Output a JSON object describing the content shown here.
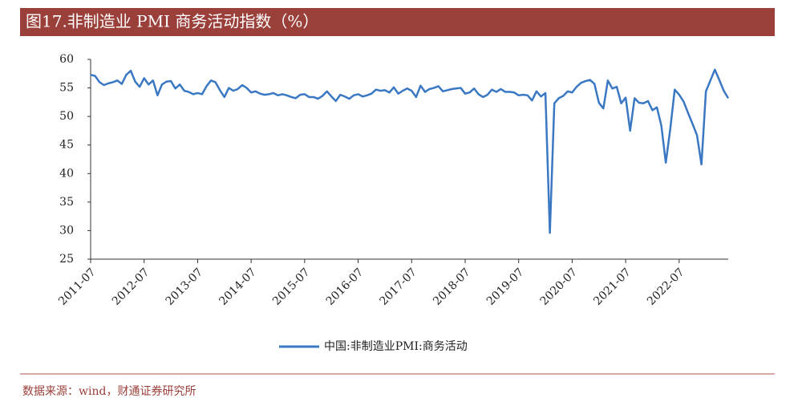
{
  "chart_data": {
    "type": "line",
    "title": "图17.非制造业 PMI 商务活动指数（%）",
    "source": "数据来源：wind，财通证券研究所",
    "categories": [
      "2011-07",
      null,
      null,
      null,
      null,
      null,
      null,
      null,
      null,
      null,
      null,
      null,
      "2012-07",
      null,
      null,
      null,
      null,
      null,
      null,
      null,
      null,
      null,
      null,
      null,
      "2013-07",
      null,
      null,
      null,
      null,
      null,
      null,
      null,
      null,
      null,
      null,
      null,
      "2014-07",
      null,
      null,
      null,
      null,
      null,
      null,
      null,
      null,
      null,
      null,
      null,
      "2015-07",
      null,
      null,
      null,
      null,
      null,
      null,
      null,
      null,
      null,
      null,
      null,
      "2016-07",
      null,
      null,
      null,
      null,
      null,
      null,
      null,
      null,
      null,
      null,
      null,
      "2017-07",
      null,
      null,
      null,
      null,
      null,
      null,
      null,
      null,
      null,
      null,
      null,
      "2018-07",
      null,
      null,
      null,
      null,
      null,
      null,
      null,
      null,
      null,
      null,
      null,
      "2019-07",
      null,
      null,
      null,
      null,
      null,
      null,
      null,
      null,
      null,
      null,
      null,
      "2020-07",
      null,
      null,
      null,
      null,
      null,
      null,
      null,
      null,
      null,
      null,
      null,
      "2021-07",
      null,
      null,
      null,
      null,
      null,
      null,
      null,
      null,
      null,
      null,
      null,
      "2022-07",
      null,
      null,
      null,
      null,
      null,
      null,
      null,
      null,
      null,
      null,
      null
    ],
    "series": [
      {
        "name": "中国:非制造业PMI:商务活动",
        "color": "#3a78c4",
        "values": [
          57.3,
          57.1,
          56.0,
          55.5,
          55.8,
          56.0,
          56.3,
          55.7,
          57.3,
          58.0,
          56.1,
          55.2,
          56.7,
          55.6,
          56.3,
          53.7,
          55.6,
          56.1,
          56.2,
          54.9,
          55.6,
          54.5,
          54.3,
          53.9,
          54.1,
          53.9,
          55.3,
          56.3,
          56.0,
          54.6,
          53.4,
          55.0,
          54.5,
          54.8,
          55.5,
          55.0,
          54.2,
          54.4,
          54.0,
          53.8,
          53.9,
          54.1,
          53.7,
          53.9,
          53.7,
          53.4,
          53.2,
          53.8,
          53.9,
          53.4,
          53.4,
          53.1,
          53.6,
          54.4,
          53.5,
          52.7,
          53.8,
          53.5,
          53.1,
          53.7,
          53.9,
          53.5,
          53.7,
          54.0,
          54.7,
          54.5,
          54.6,
          54.2,
          55.1,
          54.0,
          54.5,
          54.9,
          54.5,
          53.4,
          55.4,
          54.3,
          54.8,
          55.0,
          55.3,
          54.4,
          54.6,
          54.8,
          54.9,
          55.0,
          54.0,
          54.2,
          54.9,
          53.9,
          53.4,
          53.8,
          54.7,
          54.3,
          54.8,
          54.3,
          54.3,
          54.2,
          53.7,
          53.8,
          53.7,
          52.8,
          54.4,
          53.5,
          54.1,
          29.6,
          52.3,
          53.2,
          53.6,
          54.4,
          54.2,
          55.2,
          55.9,
          56.2,
          56.4,
          55.7,
          52.4,
          51.4,
          56.3,
          54.9,
          55.2,
          52.3,
          53.3,
          47.5,
          53.2,
          52.4,
          52.3,
          52.7,
          51.1,
          51.6,
          48.4,
          41.9,
          47.8,
          54.7,
          53.8,
          52.6,
          50.6,
          48.7,
          46.7,
          41.6,
          54.4,
          56.3,
          58.2,
          56.4,
          54.5,
          53.2
        ]
      }
    ],
    "ylim": [
      25,
      60
    ],
    "yticks": [
      25,
      30,
      35,
      40,
      45,
      50,
      55,
      60
    ]
  }
}
